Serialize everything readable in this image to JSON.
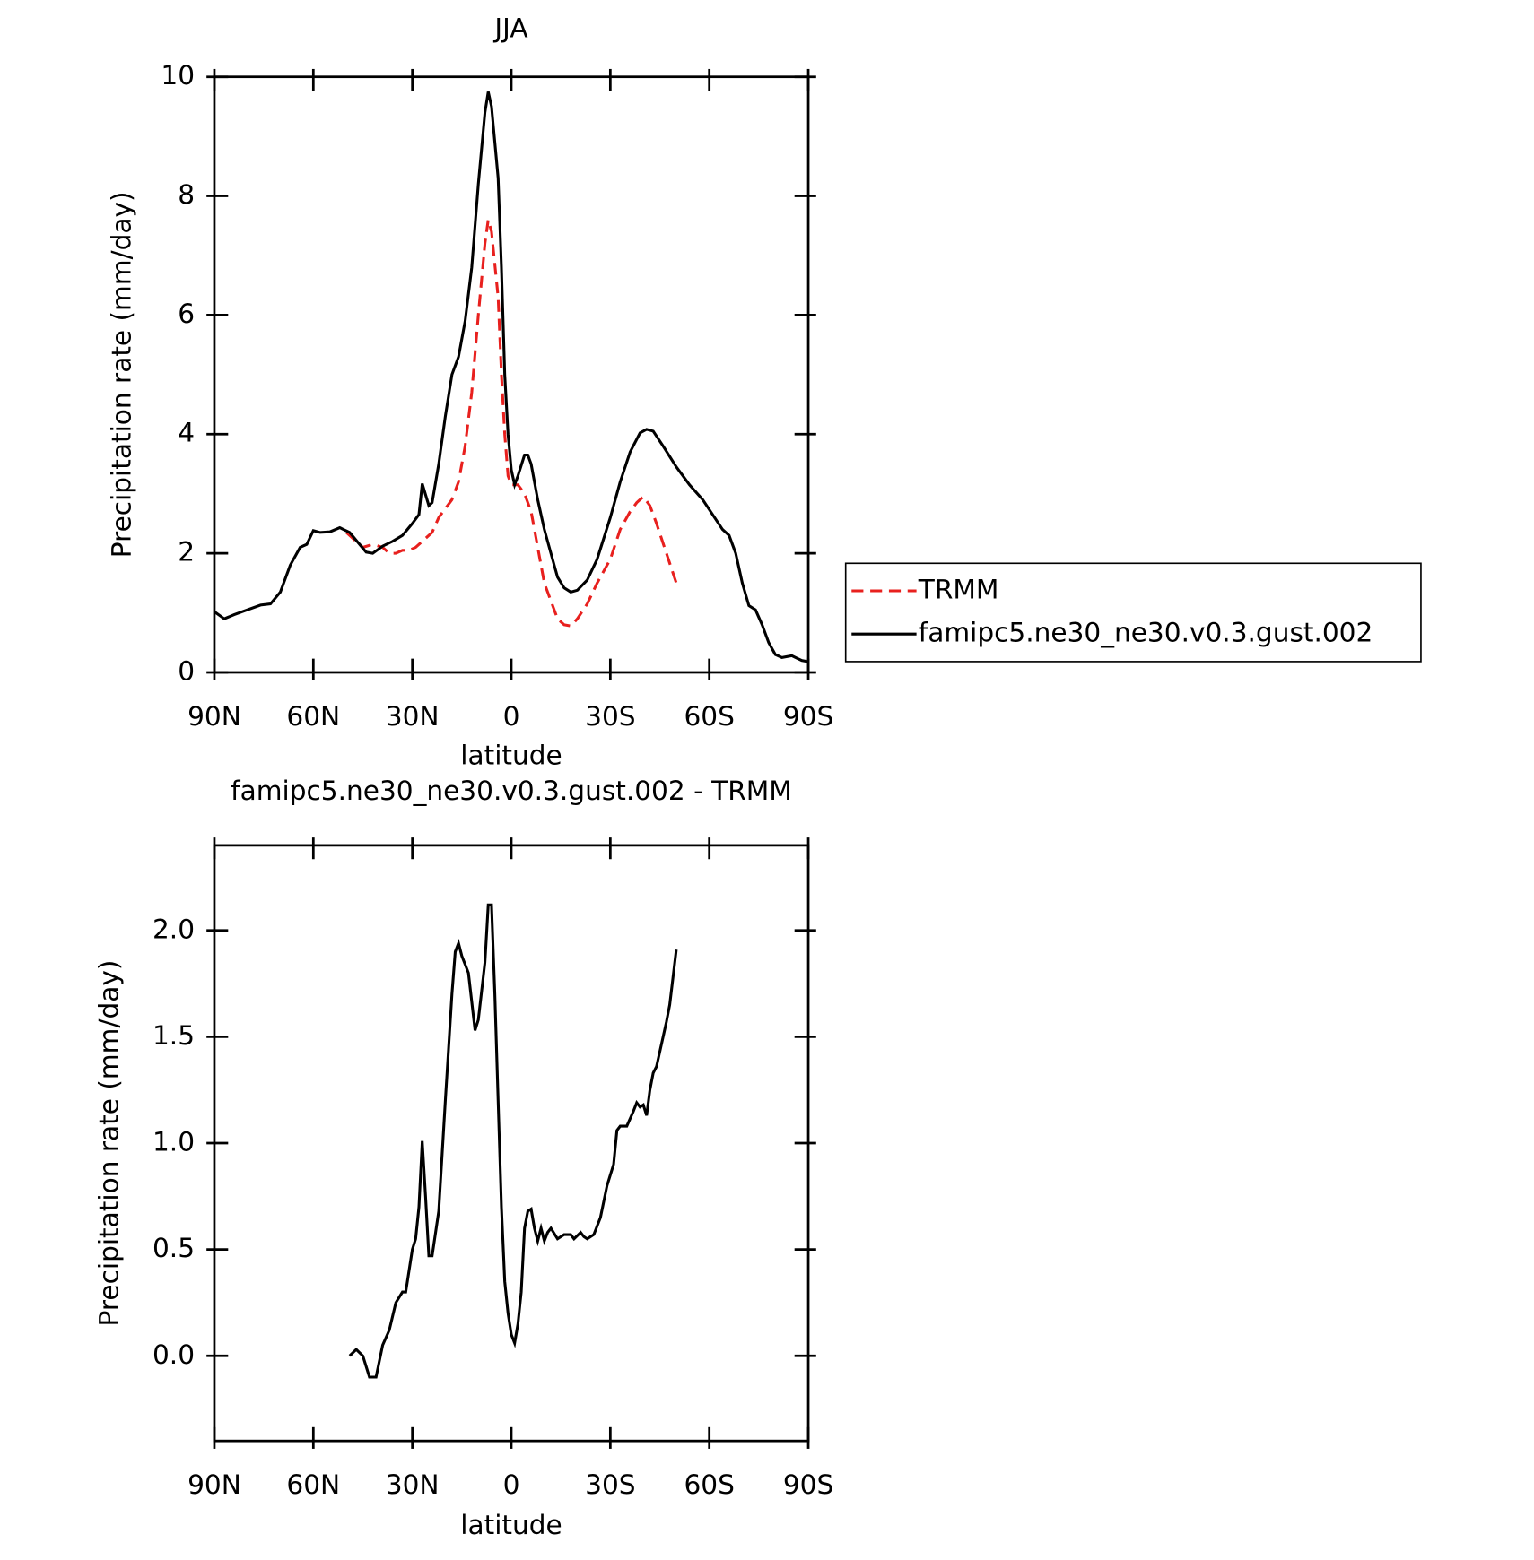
{
  "chart_data": [
    {
      "type": "line",
      "title": "JJA",
      "xlabel": "latitude",
      "ylabel": "Precipitation rate (mm/day)",
      "xlim": [
        90,
        -90
      ],
      "xticks": [
        {
          "value": 90,
          "label": "90N"
        },
        {
          "value": 60,
          "label": "60N"
        },
        {
          "value": 30,
          "label": "30N"
        },
        0,
        {
          "value": -30,
          "label": "30S"
        },
        {
          "value": -60,
          "label": "60S"
        },
        {
          "value": -90,
          "label": "90S"
        }
      ],
      "ylim": [
        0,
        10
      ],
      "yticks": [
        0,
        2,
        4,
        6,
        8,
        10
      ],
      "legend": "right",
      "series": [
        {
          "name": "TRMM",
          "color": "#e8201e",
          "linestyle": "dashed",
          "x": [
            50,
            47,
            45,
            42,
            39,
            37,
            35,
            33,
            31,
            29,
            26,
            24,
            22,
            20,
            18,
            16,
            14,
            12,
            10,
            8,
            7,
            6,
            4,
            3,
            2,
            1,
            0,
            -2,
            -4,
            -6,
            -8,
            -10,
            -12,
            -14,
            -16,
            -18,
            -20,
            -23,
            -26,
            -30,
            -33,
            -36,
            -38,
            -40,
            -42,
            -44,
            -47,
            -50
          ],
          "values": [
            2.35,
            2.2,
            2.1,
            2.15,
            2.1,
            2.0,
            2.0,
            2.05,
            2.05,
            2.1,
            2.25,
            2.35,
            2.6,
            2.75,
            2.9,
            3.2,
            3.8,
            4.7,
            6.0,
            7.2,
            7.6,
            7.4,
            6.3,
            5.0,
            4.0,
            3.3,
            3.15,
            3.15,
            3.0,
            2.7,
            2.1,
            1.5,
            1.2,
            0.9,
            0.8,
            0.78,
            0.9,
            1.15,
            1.5,
            1.9,
            2.4,
            2.7,
            2.85,
            2.95,
            2.8,
            2.5,
            2.0,
            1.5
          ]
        },
        {
          "name": "famipc5.ne30_ne30.v0.3.gust.002",
          "color": "#000000",
          "linestyle": "solid",
          "x": [
            90,
            87,
            84,
            80,
            76,
            73,
            70,
            67,
            64,
            62,
            60,
            58,
            55,
            52,
            49,
            46,
            44,
            42,
            39,
            36,
            33,
            30,
            28,
            27,
            25,
            24,
            22,
            20,
            18,
            16,
            14,
            12,
            10,
            8,
            7,
            6,
            4,
            3,
            2,
            1,
            0,
            -1,
            -2,
            -4,
            -5,
            -6,
            -8,
            -10,
            -12,
            -14,
            -16,
            -18,
            -20,
            -23,
            -26,
            -30,
            -33,
            -36,
            -39,
            -41,
            -43,
            -46,
            -50,
            -54,
            -58,
            -61,
            -64,
            -66,
            -68,
            -70,
            -72,
            -74,
            -76,
            -78,
            -80,
            -82,
            -85,
            -88,
            -90
          ],
          "values": [
            1.02,
            0.9,
            0.97,
            1.05,
            1.13,
            1.15,
            1.35,
            1.8,
            2.1,
            2.15,
            2.38,
            2.35,
            2.36,
            2.43,
            2.35,
            2.15,
            2.02,
            2.0,
            2.12,
            2.2,
            2.3,
            2.5,
            2.65,
            3.17,
            2.8,
            2.85,
            3.5,
            4.3,
            5.0,
            5.3,
            5.9,
            6.8,
            8.2,
            9.4,
            9.75,
            9.5,
            8.3,
            6.8,
            5.0,
            4.0,
            3.4,
            3.15,
            3.3,
            3.65,
            3.65,
            3.5,
            2.9,
            2.4,
            2.0,
            1.6,
            1.42,
            1.35,
            1.38,
            1.55,
            1.9,
            2.6,
            3.2,
            3.7,
            4.02,
            4.08,
            4.05,
            3.8,
            3.45,
            3.15,
            2.9,
            2.65,
            2.4,
            2.3,
            2.0,
            1.5,
            1.12,
            1.05,
            0.8,
            0.5,
            0.3,
            0.25,
            0.28,
            0.2,
            0.18
          ]
        }
      ]
    },
    {
      "type": "line",
      "title": "famipc5.ne30_ne30.v0.3.gust.002 - TRMM",
      "xlabel": "latitude",
      "ylabel": "Precipitation rate (mm/day)",
      "xlim": [
        90,
        -90
      ],
      "xticks": [
        {
          "value": 90,
          "label": "90N"
        },
        {
          "value": 60,
          "label": "60N"
        },
        {
          "value": 30,
          "label": "30N"
        },
        0,
        {
          "value": -30,
          "label": "30S"
        },
        {
          "value": -60,
          "label": "60S"
        },
        {
          "value": -90,
          "label": "90S"
        }
      ],
      "ylim": [
        -0.4,
        2.4
      ],
      "yticks": [
        {
          "value": 0,
          "label": "0.0"
        },
        0.5,
        {
          "value": 1,
          "label": "1.0"
        },
        1.5,
        {
          "value": 2,
          "label": "2.0"
        }
      ],
      "series": [
        {
          "color": "#000000",
          "linestyle": "solid",
          "x": [
            49,
            47,
            45,
            43,
            41,
            39,
            37,
            35,
            33,
            32,
            31,
            30,
            29,
            28,
            27,
            26,
            25,
            24,
            22,
            20,
            18,
            17,
            16,
            15,
            13,
            11,
            10,
            8,
            7,
            6,
            5,
            4,
            3,
            2,
            1,
            0,
            -1,
            -2,
            -3,
            -4,
            -5,
            -6,
            -7,
            -8,
            -9,
            -10,
            -11,
            -12,
            -14,
            -16,
            -18,
            -19,
            -21,
            -22,
            -23,
            -25,
            -27,
            -29,
            -31,
            -32,
            -33,
            -35,
            -37,
            -38,
            -39,
            -40,
            -41,
            -42,
            -43,
            -44,
            -46,
            -47,
            -48,
            -50
          ],
          "values": [
            0.0,
            0.03,
            0.0,
            -0.1,
            -0.1,
            0.05,
            0.12,
            0.25,
            0.3,
            0.3,
            0.4,
            0.5,
            0.55,
            0.7,
            1.01,
            0.75,
            0.47,
            0.47,
            0.68,
            1.2,
            1.7,
            1.9,
            1.94,
            1.88,
            1.8,
            1.53,
            1.58,
            1.85,
            2.12,
            2.12,
            1.7,
            1.2,
            0.7,
            0.35,
            0.2,
            0.1,
            0.06,
            0.15,
            0.3,
            0.6,
            0.68,
            0.69,
            0.6,
            0.54,
            0.6,
            0.54,
            0.58,
            0.6,
            0.55,
            0.57,
            0.57,
            0.55,
            0.58,
            0.56,
            0.55,
            0.57,
            0.65,
            0.8,
            0.9,
            1.06,
            1.08,
            1.08,
            1.15,
            1.19,
            1.17,
            1.18,
            1.13,
            1.25,
            1.33,
            1.36,
            1.5,
            1.57,
            1.65,
            1.91
          ]
        }
      ]
    }
  ]
}
